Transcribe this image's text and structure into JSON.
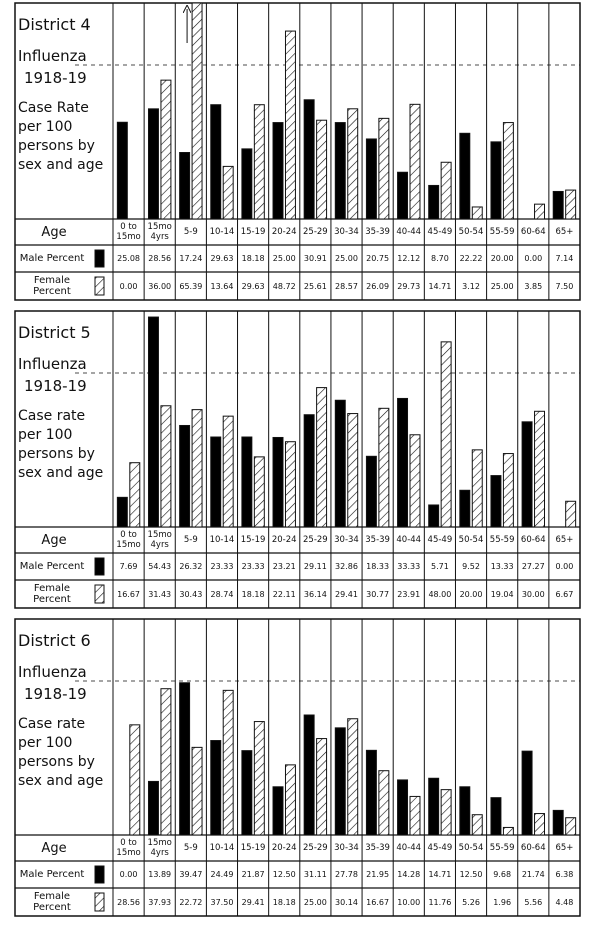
{
  "chart_data": [
    {
      "type": "bar",
      "title": "District 4",
      "subtitle": [
        "Influenza",
        "1918-19"
      ],
      "ylabel": "Case Rate per 100 persons by sex and age",
      "xlabel": "Age",
      "categories": [
        "0 to 15mo",
        "15mo 4yrs",
        "5-9",
        "10-14",
        "15-19",
        "20-24",
        "25-29",
        "30-34",
        "35-39",
        "40-44",
        "45-49",
        "50-54",
        "55-59",
        "60-64",
        "65+"
      ],
      "ylim": [
        0,
        56
      ],
      "series": [
        {
          "name": "Male Percent",
          "color": "#000000",
          "pattern": "solid",
          "values": [
            25.08,
            28.56,
            17.24,
            29.63,
            18.18,
            25.0,
            30.91,
            25.0,
            20.75,
            12.12,
            8.7,
            22.22,
            20.0,
            0.0,
            7.14
          ],
          "value_labels": [
            "25.08",
            "28.56",
            "17.24",
            "29.63",
            "18.18",
            "25.00",
            "30.91",
            "25.00",
            "20.75",
            "12.12",
            "8.70",
            "22.22",
            "20.00",
            "0.00",
            "7.14"
          ]
        },
        {
          "name": "Female Percent",
          "color": "#000000",
          "pattern": "hatch",
          "values": [
            0.0,
            36.0,
            65.39,
            13.64,
            29.63,
            48.72,
            25.61,
            28.57,
            26.09,
            29.73,
            14.71,
            3.12,
            25.0,
            3.85,
            7.5
          ],
          "value_labels": [
            "0.00",
            "36.00",
            "65.39",
            "13.64",
            "29.63",
            "48.72",
            "25.61",
            "28.57",
            "26.09",
            "29.73",
            "14.71",
            "3.12",
            "25.00",
            "3.85",
            "7.50"
          ]
        }
      ]
    },
    {
      "type": "bar",
      "title": "District 5",
      "subtitle": [
        "Influenza",
        "1918-19"
      ],
      "ylabel": "Case rate per 100 persons by sex and age",
      "xlabel": "Age",
      "categories": [
        "0 to 15mo",
        "15mo 4yrs",
        "5-9",
        "10-14",
        "15-19",
        "20-24",
        "25-29",
        "30-34",
        "35-39",
        "40-44",
        "45-49",
        "50-54",
        "55-59",
        "60-64",
        "65+"
      ],
      "ylim": [
        0,
        56
      ],
      "series": [
        {
          "name": "Male Percent",
          "color": "#000000",
          "pattern": "solid",
          "values": [
            7.69,
            54.43,
            26.32,
            23.33,
            23.33,
            23.21,
            29.11,
            32.86,
            18.33,
            33.33,
            5.71,
            9.52,
            13.33,
            27.27,
            0.0
          ],
          "value_labels": [
            "7.69",
            "54.43",
            "26.32",
            "23.33",
            "23.33",
            "23.21",
            "29.11",
            "32.86",
            "18.33",
            "33.33",
            "5.71",
            "9.52",
            "13.33",
            "27.27",
            "0.00"
          ]
        },
        {
          "name": "Female Percent",
          "color": "#000000",
          "pattern": "hatch",
          "values": [
            16.67,
            31.43,
            30.43,
            28.74,
            18.18,
            22.11,
            36.14,
            29.41,
            30.77,
            23.91,
            48.0,
            20.0,
            19.04,
            30.0,
            6.67
          ],
          "value_labels": [
            "16.67",
            "31.43",
            "30.43",
            "28.74",
            "18.18",
            "22.11",
            "36.14",
            "29.41",
            "30.77",
            "23.91",
            "48.00",
            "20.00",
            "19.04",
            "30.00",
            "6.67"
          ]
        }
      ]
    },
    {
      "type": "bar",
      "title": "District 6",
      "subtitle": [
        "Influenza",
        "1918-19"
      ],
      "ylabel": "Case rate per 100 persons by sex and age",
      "xlabel": "Age",
      "categories": [
        "0 to 15mo",
        "15mo 4yrs",
        "5-9",
        "10-14",
        "15-19",
        "20-24",
        "25-29",
        "30-34",
        "35-39",
        "40-44",
        "45-49",
        "50-54",
        "55-59",
        "60-64",
        "65+"
      ],
      "ylim": [
        0,
        56
      ],
      "series": [
        {
          "name": "Male Percent",
          "color": "#000000",
          "pattern": "solid",
          "values": [
            0.0,
            13.89,
            39.47,
            24.49,
            21.87,
            12.5,
            31.11,
            27.78,
            21.95,
            14.28,
            14.71,
            12.5,
            9.68,
            21.74,
            6.38
          ],
          "value_labels": [
            "0.00",
            "13.89",
            "39.47",
            "24.49",
            "21.87",
            "12.50",
            "31.11",
            "27.78",
            "21.95",
            "14.28",
            "14.71",
            "12.50",
            "9.68",
            "21.74",
            "6.38"
          ]
        },
        {
          "name": "Female Percent",
          "color": "#000000",
          "pattern": "hatch",
          "values": [
            28.56,
            37.93,
            22.72,
            37.5,
            29.41,
            18.18,
            25.0,
            30.14,
            16.67,
            10.0,
            11.76,
            5.26,
            1.96,
            5.56,
            4.48
          ],
          "value_labels": [
            "28.56",
            "37.93",
            "22.72",
            "37.50",
            "29.41",
            "18.18",
            "25.00",
            "30.14",
            "16.67",
            "10.00",
            "11.76",
            "5.26",
            "1.96",
            "5.56",
            "4.48"
          ]
        }
      ]
    }
  ]
}
